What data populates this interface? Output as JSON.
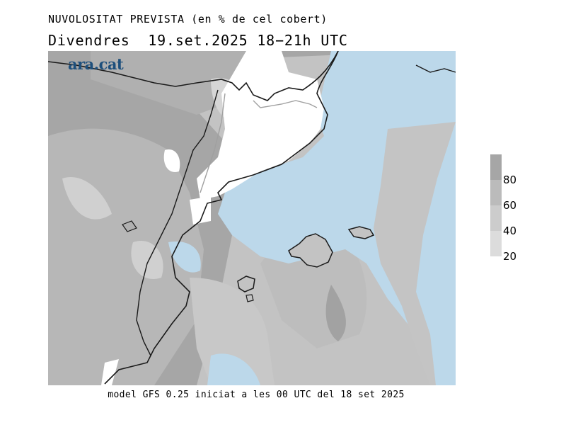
{
  "header": {
    "title": "NUVOLOSITAT PREVISTA (en % de cel cobert)",
    "subtitle": "Divendres  19.set.2025 18−21h UTC"
  },
  "logo": {
    "text": "ara.cat"
  },
  "footer": {
    "caption": "model GFS 0.25 iniciat a les 00 UTC del 18 set 2025"
  },
  "legend": {
    "ticks": [
      "80",
      "60",
      "40",
      "20"
    ],
    "colors": [
      "#a6a6a6",
      "#bbbbbb",
      "#cccccc",
      "#dcdcdc"
    ]
  },
  "map": {
    "sea_color": "#bcd8ea",
    "clear_color": "#ffffff",
    "coast_color": "#1a1a1a",
    "border_color": "#a0a0a0"
  }
}
